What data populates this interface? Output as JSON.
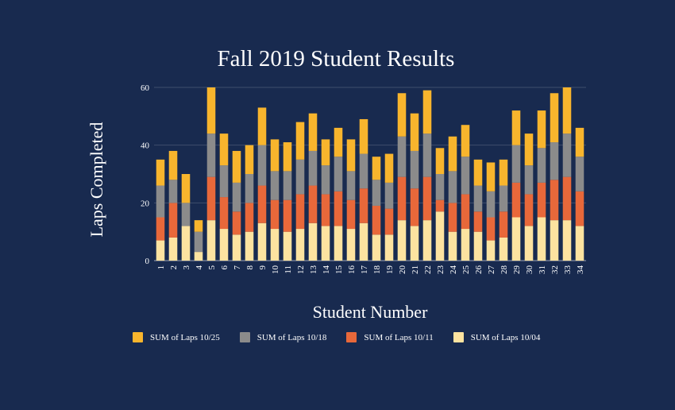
{
  "colors": {
    "background": "#182a4f",
    "gridline": "#3e4d6c",
    "text": "#ffffff"
  },
  "chart_data": {
    "type": "bar",
    "stacked": true,
    "title": "Fall 2019 Student Results",
    "xlabel": "Student Number",
    "ylabel": "Laps Completed",
    "ylim": [
      0,
      60
    ],
    "yticks": [
      0,
      20,
      40,
      60
    ],
    "grid": true,
    "legend_position": "bottom",
    "categories": [
      "1",
      "2",
      "3",
      "4",
      "5",
      "6",
      "7",
      "8",
      "9",
      "10",
      "11",
      "12",
      "13",
      "14",
      "15",
      "16",
      "17",
      "18",
      "19",
      "20",
      "21",
      "22",
      "23",
      "24",
      "25",
      "26",
      "27",
      "28",
      "29",
      "30",
      "31",
      "32",
      "33",
      "34"
    ],
    "series": [
      {
        "name": "SUM of Laps 10/04",
        "color": "#fde3a0",
        "values": [
          7,
          8,
          12,
          3,
          14,
          11,
          9,
          10,
          13,
          11,
          10,
          11,
          13,
          12,
          12,
          11,
          13,
          9,
          9,
          14,
          12,
          14,
          17,
          10,
          11,
          10,
          7,
          8,
          15,
          12,
          15,
          14,
          14,
          12
        ]
      },
      {
        "name": "SUM of Laps 10/11",
        "color": "#e8683a",
        "values": [
          8,
          12,
          0,
          0,
          15,
          11,
          8,
          10,
          13,
          10,
          11,
          12,
          13,
          11,
          12,
          10,
          12,
          10,
          9,
          15,
          13,
          15,
          4,
          10,
          12,
          7,
          8,
          9,
          12,
          11,
          12,
          14,
          15,
          12
        ]
      },
      {
        "name": "SUM of Laps 10/18",
        "color": "#8b8b8b",
        "values": [
          11,
          8,
          8,
          7,
          15,
          11,
          10,
          10,
          14,
          10,
          10,
          12,
          12,
          10,
          12,
          10,
          12,
          9,
          9,
          14,
          13,
          15,
          9,
          11,
          13,
          9,
          9,
          9,
          13,
          10,
          12,
          13,
          15,
          12
        ]
      },
      {
        "name": "SUM of Laps 10/25",
        "color": "#f8b52d",
        "values": [
          9,
          10,
          10,
          4,
          16,
          11,
          11,
          10,
          13,
          11,
          10,
          13,
          13,
          9,
          10,
          11,
          12,
          8,
          10,
          15,
          13,
          15,
          9,
          12,
          11,
          9,
          10,
          9,
          12,
          11,
          13,
          17,
          16,
          10
        ]
      }
    ]
  }
}
